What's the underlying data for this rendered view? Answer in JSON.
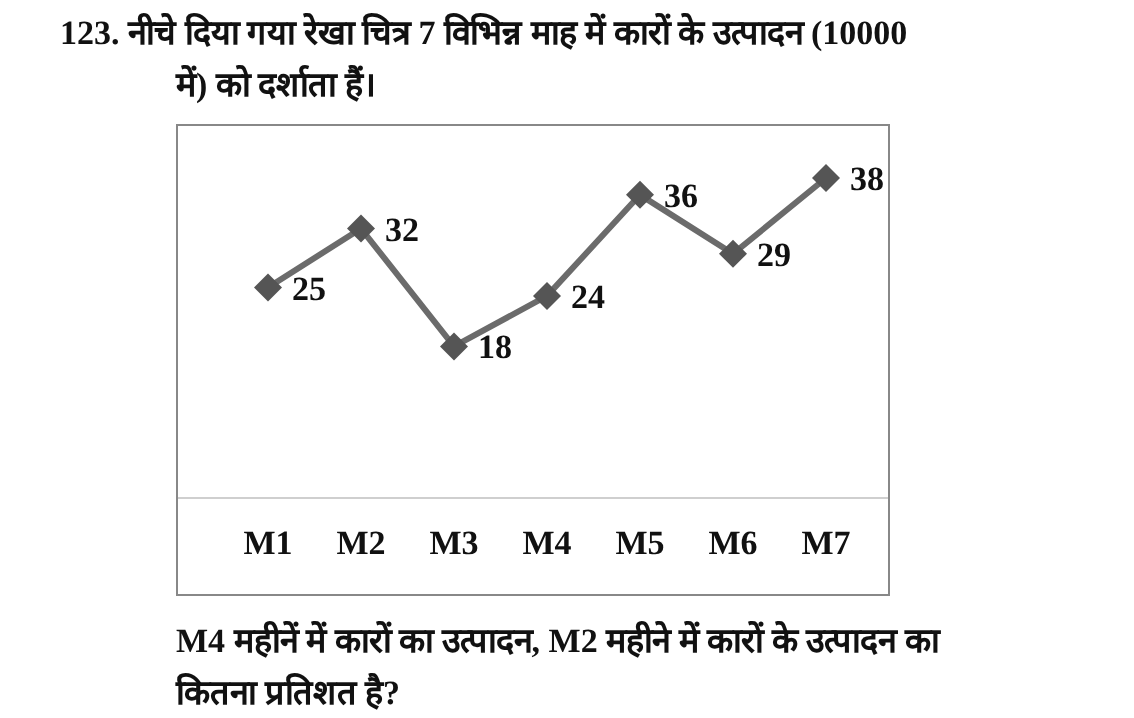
{
  "chart_data": {
    "type": "line",
    "title": "123. नीचे दिया गया रेखा चित्र 7 विभिन्न माह में कारों के उत्पादन (10000 में) को दर्शाता हैं।",
    "categories": [
      "M1",
      "M2",
      "M3",
      "M4",
      "M5",
      "M6",
      "M7"
    ],
    "series": [
      {
        "color": "#6b6b6b",
        "values": [
          25,
          32,
          18,
          24,
          36,
          29,
          38
        ]
      }
    ],
    "data_labels": true,
    "marker": "diamond",
    "line_style": "solid",
    "annotations": [
      "M4 महीनें में कारों का उत्पादन, M2 महीने में कारों के उत्पादन का कितना प्रतिशत है?"
    ]
  }
}
